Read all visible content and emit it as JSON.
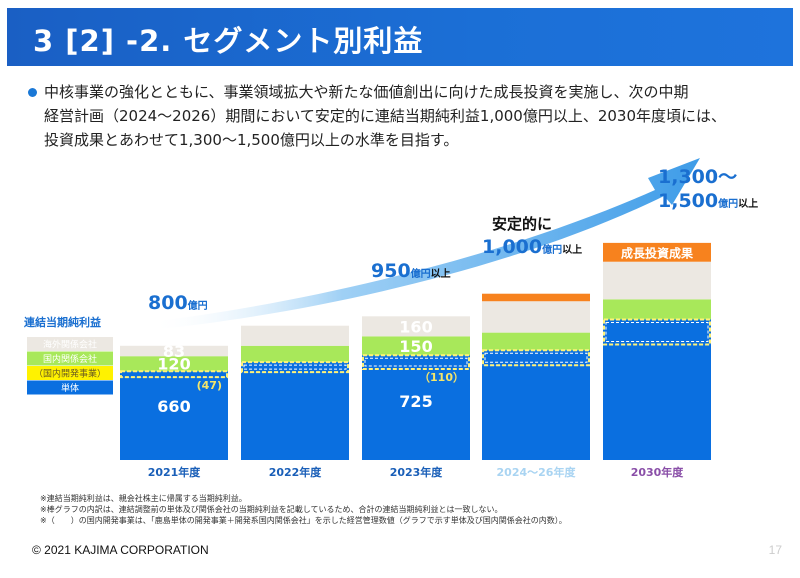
{
  "header": {
    "title": "3 [2] -2. セグメント別利益"
  },
  "description": {
    "lines": [
      "中核事業の強化とともに、事業領域拡大や新たな価値創出に向けた成長投資を実施し、次の中期",
      "経営計画（2024～2026）期間において安定的に連結当期純利益1,000億円以上、2030年度頃には、",
      "投資成果とあわせて1,300～1,500億円以上の水準を目指す。"
    ]
  },
  "colors": {
    "tandai": "#0a6fe0",
    "domestic": "#a8e85a",
    "overseas": "#ece8e2",
    "dev_outline": "#fff27a",
    "growth": "#f7821e",
    "arrow": "#5aaef0",
    "value_blue": "#1a6fd0",
    "title_bg": "#1b66cc"
  },
  "chart_data": {
    "type": "bar",
    "stacked": true,
    "title": "連結当期純利益",
    "categories": [
      "2021年度",
      "2022年度",
      "2023年度",
      "2024～26年度",
      "2030年度"
    ],
    "category_colors": [
      "#1a5fb8",
      "#1a5fb8",
      "#1a5fb8",
      "#a9d4f2",
      "#8a4fa8"
    ],
    "legend": [
      {
        "key": "overseas",
        "label": "海外関係会社"
      },
      {
        "key": "domestic",
        "label": "国内関係会社"
      },
      {
        "key": "dev",
        "label": "（国内開発事業）"
      },
      {
        "key": "tandai",
        "label": "単体"
      }
    ],
    "series": [
      {
        "name": "単体",
        "key": "tandai",
        "values": [
          660,
          null,
          725,
          null,
          null
        ]
      },
      {
        "name": "国内関係会社",
        "key": "domestic",
        "values": [
          120,
          null,
          150,
          null,
          null
        ]
      },
      {
        "name": "海外関係会社",
        "key": "overseas",
        "values": [
          83,
          null,
          160,
          null,
          null
        ]
      },
      {
        "name": "成長投資成果",
        "key": "growth",
        "values": [
          null,
          null,
          null,
          null,
          null
        ]
      }
    ],
    "dev_values": [
      47,
      null,
      110,
      null,
      null
    ],
    "dev_labels": [
      "(47)",
      "",
      "（110）",
      "",
      ""
    ],
    "approx_segments": [
      {
        "tandai": 660,
        "dev": 47,
        "domestic": 120,
        "overseas": 83,
        "growth": 0
      },
      {
        "tandai": 700,
        "dev": 80,
        "domestic": 130,
        "overseas": 160,
        "growth": 0
      },
      {
        "tandai": 725,
        "dev": 110,
        "domestic": 150,
        "overseas": 160,
        "growth": 0
      },
      {
        "tandai": 755,
        "dev": 120,
        "domestic": 140,
        "overseas": 250,
        "growth": 60
      },
      {
        "tandai": 920,
        "dev": 200,
        "domestic": 160,
        "overseas": 300,
        "growth": 150
      }
    ],
    "totals_labels": [
      {
        "value": "800",
        "unit": "億円",
        "suffix": "",
        "prefix": ""
      },
      {
        "value": "950",
        "unit": "億円",
        "suffix": "以上",
        "prefix": ""
      },
      {
        "value": "1,000",
        "unit": "億円",
        "suffix": "以上",
        "prefix": "安定的に"
      },
      {
        "value": "1,300～",
        "value2": "1,500",
        "unit": "億円",
        "suffix": "以上",
        "prefix": ""
      }
    ],
    "growth_label": "成長投資成果",
    "ylabel": "",
    "xlabel": ""
  },
  "footnotes": [
    "※連結当期純利益は、親会社株主に帰属する当期純利益。",
    "※棒グラフの内訳は、連結調整前の単体及び関係会社の当期純利益を記載しているため、合計の連結当期純利益とは一致しない。",
    "※（　　）の国内開発事業は、「鹿島単体の開発事業＋開発系国内関係会社」を示した経営管理数値（グラフで示す単体及び国内関係会社の内数）。"
  ],
  "footer": {
    "copyright": "© 2021 KAJIMA CORPORATION",
    "page": "17"
  }
}
